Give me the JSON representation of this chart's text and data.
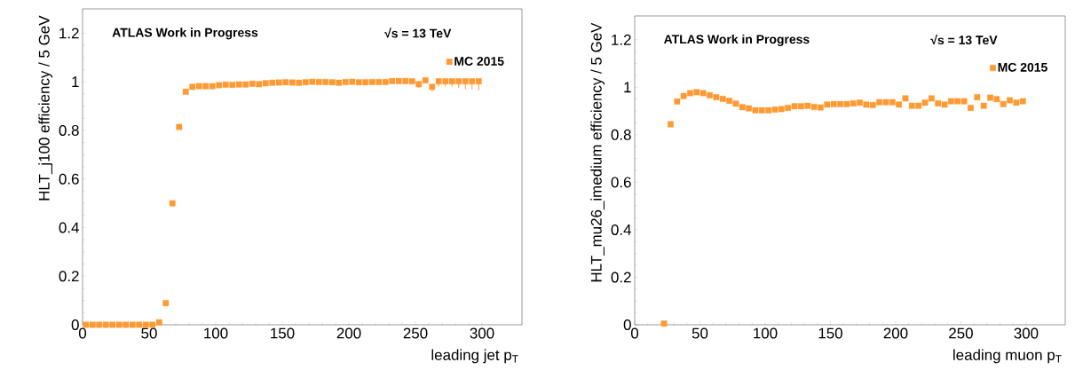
{
  "chart_data": [
    {
      "type": "scatter",
      "xlabel": "leading jet p$_{T}$",
      "ylabel": "HLT_j100 efficiency / 5 GeV",
      "annotations": [
        "**ATLAS Work in Progress**",
        "**√s = 13 TeV**"
      ],
      "x": [
        2.5,
        7.5,
        12.5,
        17.5,
        22.5,
        27.5,
        32.5,
        37.5,
        42.5,
        47.5,
        52.5,
        57.5,
        62.5,
        67.5,
        72.5,
        77.5,
        82.5,
        87.5,
        92.5,
        97.5,
        102.5,
        107.5,
        112.5,
        117.5,
        122.5,
        127.5,
        132.5,
        137.5,
        142.5,
        147.5,
        152.5,
        157.5,
        162.5,
        167.5,
        172.5,
        177.5,
        182.5,
        187.5,
        192.5,
        197.5,
        202.5,
        207.5,
        212.5,
        217.5,
        222.5,
        227.5,
        232.5,
        237.5,
        242.5,
        247.5,
        252.5,
        257.5,
        262.5,
        267.5,
        272.5,
        277.5,
        282.5,
        287.5,
        292.5,
        297.5
      ],
      "series": [
        {
          "name": "MC 2015",
          "color": "#ff9a33",
          "values": [
            0,
            0,
            0,
            0,
            0,
            0,
            0,
            0,
            0,
            0,
            0,
            0.01,
            0.089,
            0.5,
            0.814,
            0.959,
            0.979,
            0.982,
            0.982,
            0.982,
            0.986,
            0.988,
            0.987,
            0.989,
            0.989,
            0.992,
            0.99,
            0.994,
            0.996,
            0.997,
            0.998,
            0.997,
            0.996,
            0.998,
            1.0,
            0.999,
            0.999,
            0.998,
            0.996,
            0.999,
            1.0,
            0.998,
            0.998,
            0.999,
            0.999,
            0.999,
            1.003,
            1.003,
            1.003,
            1.002,
            0.99,
            1.006,
            0.979,
            1.002,
            1.002,
            1.002,
            1.002,
            1.002,
            1.002,
            1.002
          ],
          "errors": [
            null,
            null,
            null,
            null,
            null,
            null,
            null,
            null,
            null,
            null,
            null,
            null,
            null,
            null,
            null,
            null,
            null,
            null,
            null,
            null,
            null,
            null,
            null,
            null,
            null,
            null,
            null,
            null,
            null,
            null,
            null,
            null,
            null,
            null,
            null,
            null,
            null,
            null,
            null,
            null,
            null,
            null,
            null,
            null,
            null,
            null,
            null,
            null,
            null,
            null,
            [
              0.975,
              1.0
            ],
            [
              0.995,
              1.01
            ],
            [
              0.96,
              0.985
            ],
            [
              0.98,
              1.005
            ],
            [
              0.98,
              1.005
            ],
            [
              0.98,
              1.005
            ],
            [
              0.975,
              1.005
            ],
            [
              0.97,
              1.005
            ],
            [
              0.97,
              1.005
            ],
            [
              0.965,
              1.005
            ]
          ]
        }
      ],
      "xlim": [
        0,
        330
      ],
      "ylim": [
        0,
        1.3
      ],
      "xticks": [
        0,
        50,
        100,
        150,
        200,
        250,
        300
      ],
      "yticks": [
        0,
        0.2,
        0.4,
        0.6,
        0.8,
        1,
        1.2
      ],
      "legend": "top right",
      "marker": "square",
      "grid": false
    },
    {
      "type": "scatter",
      "xlabel": "leading muon p$_{T}$",
      "ylabel": "HLT_mu26_imedium efficiency / 5 GeV",
      "annotations": [
        "**ATLAS Work in Progress**",
        "**√s = 13 TeV**"
      ],
      "x": [
        22.5,
        27.5,
        32.5,
        37.5,
        42.5,
        47.5,
        52.5,
        57.5,
        62.5,
        67.5,
        72.5,
        77.5,
        82.5,
        87.5,
        92.5,
        97.5,
        102.5,
        107.5,
        112.5,
        117.5,
        122.5,
        127.5,
        132.5,
        137.5,
        142.5,
        147.5,
        152.5,
        157.5,
        162.5,
        167.5,
        172.5,
        177.5,
        182.5,
        187.5,
        192.5,
        197.5,
        202.5,
        207.5,
        212.5,
        217.5,
        222.5,
        227.5,
        232.5,
        237.5,
        242.5,
        247.5,
        252.5,
        257.5,
        262.5,
        267.5,
        272.5,
        277.5,
        282.5,
        287.5,
        292.5,
        297.5
      ],
      "series": [
        {
          "name": "MC 2015",
          "color": "#ff9a33",
          "values": [
            0.005,
            0.844,
            0.94,
            0.963,
            0.975,
            0.979,
            0.975,
            0.966,
            0.958,
            0.951,
            0.943,
            0.931,
            0.916,
            0.911,
            0.903,
            0.903,
            0.903,
            0.906,
            0.908,
            0.913,
            0.92,
            0.92,
            0.922,
            0.917,
            0.915,
            0.927,
            0.929,
            0.929,
            0.929,
            0.932,
            0.935,
            0.927,
            0.925,
            0.937,
            0.937,
            0.937,
            0.927,
            0.953,
            0.922,
            0.922,
            0.935,
            0.953,
            0.932,
            0.927,
            0.941,
            0.941,
            0.941,
            0.913,
            0.958,
            0.922,
            0.956,
            0.95,
            0.929,
            0.945,
            0.935,
            0.941
          ]
        }
      ],
      "xlim": [
        0,
        330
      ],
      "ylim": [
        0,
        1.3
      ],
      "xticks": [
        0,
        50,
        100,
        150,
        200,
        250,
        300
      ],
      "yticks": [
        0,
        0.2,
        0.4,
        0.6,
        0.8,
        1,
        1.2
      ],
      "legend": "top right",
      "marker": "square",
      "grid": false
    }
  ]
}
